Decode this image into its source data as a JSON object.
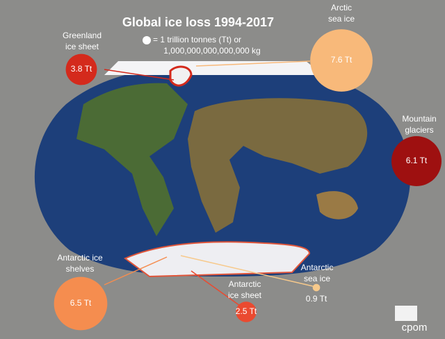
{
  "chart_data": {
    "type": "bubble",
    "title": "Global ice loss 1994-2017",
    "legend": [
      "= 1 trillion tonnes (Tt) or",
      "1,000,000,000,000,000 kg"
    ],
    "categories": [
      [
        "Greenland",
        "ice sheet"
      ],
      [
        "Arctic",
        "sea ice"
      ],
      [
        "Mountain",
        "glaciers"
      ],
      [
        "Antarctic ice",
        "shelves"
      ],
      [
        "Antarctic",
        "ice sheet"
      ],
      [
        "Antarctic",
        "sea ice"
      ]
    ],
    "values": [
      3.8,
      7.6,
      6.1,
      6.5,
      2.5,
      0.9
    ],
    "value_labels": [
      "3.8 Tt",
      "7.6 Tt",
      "6.1 Tt",
      "6.5 Tt",
      "2.5 Tt",
      "0.9 Tt"
    ],
    "colors": [
      "#d42a1c",
      "#f8b97a",
      "#9e1010",
      "#f58d4f",
      "#ea4a30",
      "#f7c98b"
    ],
    "logo": "cpom"
  }
}
